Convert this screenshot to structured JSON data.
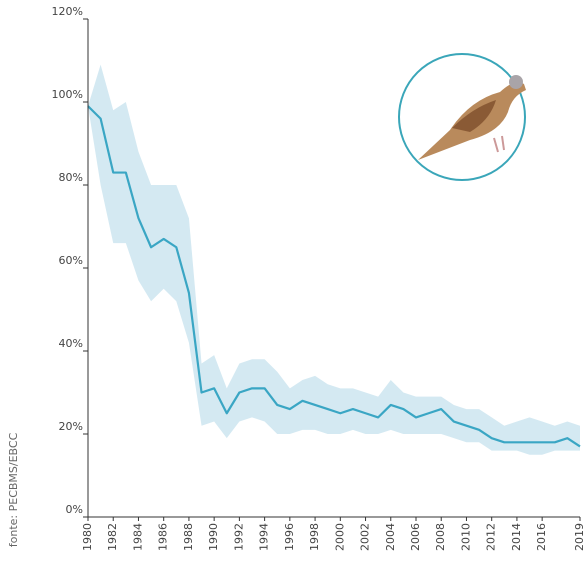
{
  "chart_data": {
    "type": "line",
    "source": "fonte: PECBMS/EBCC",
    "x": [
      1980,
      1981,
      1982,
      1983,
      1984,
      1985,
      1986,
      1987,
      1988,
      1989,
      1990,
      1991,
      1992,
      1993,
      1994,
      1995,
      1996,
      1997,
      1998,
      1999,
      2000,
      2001,
      2002,
      2003,
      2004,
      2005,
      2006,
      2007,
      2008,
      2009,
      2010,
      2011,
      2012,
      2013,
      2014,
      2015,
      2016,
      2017,
      2018,
      2019
    ],
    "values": [
      99,
      96,
      83,
      83,
      72,
      65,
      67,
      65,
      54,
      30,
      31,
      25,
      30,
      31,
      31,
      27,
      26,
      28,
      27,
      26,
      25,
      26,
      25,
      24,
      27,
      26,
      24,
      25,
      26,
      23,
      22,
      21,
      19,
      18,
      18,
      18,
      18,
      18,
      19,
      17
    ],
    "band": {
      "upper": [
        99,
        109,
        98,
        100,
        88,
        80,
        80,
        80,
        72,
        37,
        39,
        31,
        37,
        38,
        38,
        35,
        31,
        33,
        34,
        32,
        31,
        31,
        30,
        29,
        33,
        30,
        29,
        29,
        29,
        27,
        26,
        26,
        24,
        22,
        23,
        24,
        23,
        22,
        23,
        22
      ],
      "lower": [
        99,
        80,
        66,
        66,
        57,
        52,
        55,
        52,
        42,
        22,
        23,
        19,
        23,
        24,
        23,
        20,
        20,
        21,
        21,
        20,
        20,
        21,
        20,
        20,
        21,
        20,
        20,
        20,
        20,
        19,
        18,
        18,
        16,
        16,
        16,
        15,
        15,
        16,
        16,
        16
      ],
      "color": "#d4e9f2"
    },
    "color": "#3aa6c4",
    "xlim": [
      1980,
      2019
    ],
    "xticks": [
      1980,
      1982,
      1984,
      1986,
      1988,
      1990,
      1992,
      1994,
      1996,
      1998,
      2000,
      2002,
      2004,
      2006,
      2008,
      2010,
      2012,
      2014,
      2016,
      2019
    ],
    "ylim": [
      0,
      120
    ],
    "yticks": [
      {
        "value": 0,
        "label": "0%"
      },
      {
        "value": 20,
        "label": "20%"
      },
      {
        "value": 40,
        "label": "40%"
      },
      {
        "value": 60,
        "label": "60%"
      },
      {
        "value": 80,
        "label": "80%"
      },
      {
        "value": 100,
        "label": "100%"
      },
      {
        "value": 120,
        "label": "120%"
      }
    ],
    "grid": false
  }
}
